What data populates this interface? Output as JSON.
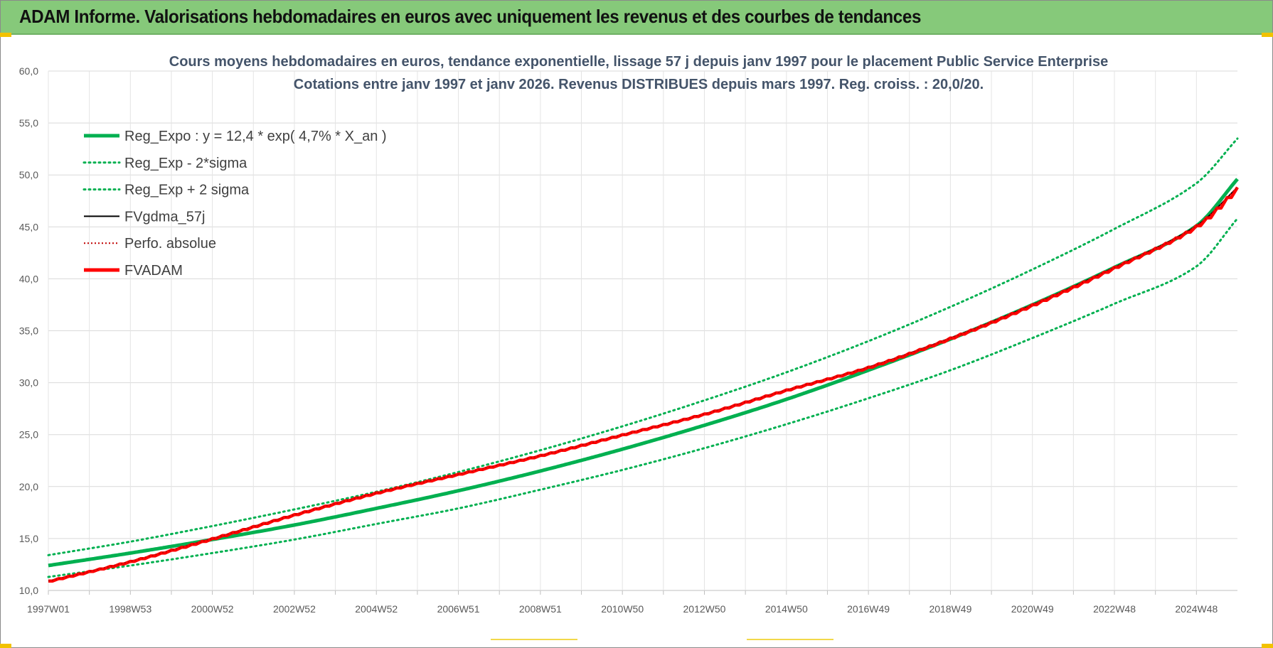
{
  "banner": {
    "title": "ADAM Informe. Valorisations hebdomadaires en euros avec uniquement les revenus et des courbes de tendances"
  },
  "colors": {
    "banner_bg": "#86c97a",
    "reg_expo": "#00b050",
    "fvadam": "#ff0000",
    "fvgdma": "#000000",
    "grid": "#d9d9d9",
    "title": "#44546a"
  },
  "chart_data": {
    "type": "line",
    "title": "Cours moyens hebdomadaires en euros, tendance exponentielle, lissage 57 j depuis janv 1997  pour le placement Public Service Enterprise",
    "subtitle": "Cotations entre janv 1997 et janv 2026. Revenus DISTRIBUES depuis mars 1997. Reg. croiss. : 20,0/20.",
    "xlabel": "",
    "ylabel": "",
    "ylim": [
      10,
      60
    ],
    "y_ticks": [
      "10,0",
      "15,0",
      "20,0",
      "25,0",
      "30,0",
      "35,0",
      "40,0",
      "45,0",
      "50,0",
      "55,0",
      "60,0"
    ],
    "x_tick_labels": [
      "1997W01",
      "1998W53",
      "2000W52",
      "2002W52",
      "2004W52",
      "2006W51",
      "2008W51",
      "2010W50",
      "2012W50",
      "2014W50",
      "2016W49",
      "2018W49",
      "2020W49",
      "2022W48",
      "2024W48"
    ],
    "grid": true,
    "legend_position": "top-left",
    "x_years": [
      1997,
      1999,
      2001,
      2003,
      2005,
      2007,
      2009,
      2011,
      2013,
      2015,
      2017,
      2019,
      2021,
      2023,
      2025,
      2026
    ],
    "series": [
      {
        "name": "Reg_Expo : y = 12,4 * exp( 4,7% *  X_an )",
        "style": "solid-thick",
        "color": "#00b050",
        "values": [
          12.4,
          13.6,
          14.9,
          16.3,
          17.9,
          19.6,
          21.5,
          23.6,
          25.9,
          28.4,
          31.2,
          34.2,
          37.5,
          41.1,
          45.1,
          49.6
        ]
      },
      {
        "name": "Reg_Exp - 2*sigma",
        "style": "dotted",
        "color": "#00b050",
        "values": [
          11.3,
          12.4,
          13.6,
          14.9,
          16.4,
          17.9,
          19.7,
          21.6,
          23.7,
          26.0,
          28.5,
          31.2,
          34.3,
          37.6,
          41.2,
          45.8
        ]
      },
      {
        "name": "Reg_Exp + 2 sigma",
        "style": "dotted",
        "color": "#00b050",
        "values": [
          13.4,
          14.7,
          16.2,
          17.8,
          19.5,
          21.4,
          23.5,
          25.8,
          28.3,
          31.0,
          34.0,
          37.3,
          40.9,
          44.8,
          49.2,
          53.5
        ]
      },
      {
        "name": "FVgdma_57j",
        "style": "solid",
        "color": "#000000",
        "values": [
          10.9,
          12.8,
          15.0,
          17.3,
          19.4,
          21.2,
          23.0,
          25.0,
          27.0,
          29.3,
          31.5,
          34.3,
          37.5,
          41.1,
          45.1,
          48.8
        ]
      },
      {
        "name": "Perfo. absolue",
        "style": "dotted-thin",
        "color": "#c00000",
        "values": [
          10.9,
          12.8,
          15.0,
          17.3,
          19.4,
          21.2,
          23.0,
          25.0,
          27.0,
          29.3,
          31.5,
          34.3,
          37.5,
          41.1,
          45.1,
          48.8
        ]
      },
      {
        "name": "FVADAM",
        "style": "solid-thick-steps",
        "color": "#ff0000",
        "values": [
          10.9,
          12.8,
          15.0,
          17.3,
          19.4,
          21.2,
          23.0,
          25.0,
          27.0,
          29.3,
          31.5,
          34.3,
          37.5,
          41.1,
          45.1,
          48.8
        ]
      }
    ]
  }
}
